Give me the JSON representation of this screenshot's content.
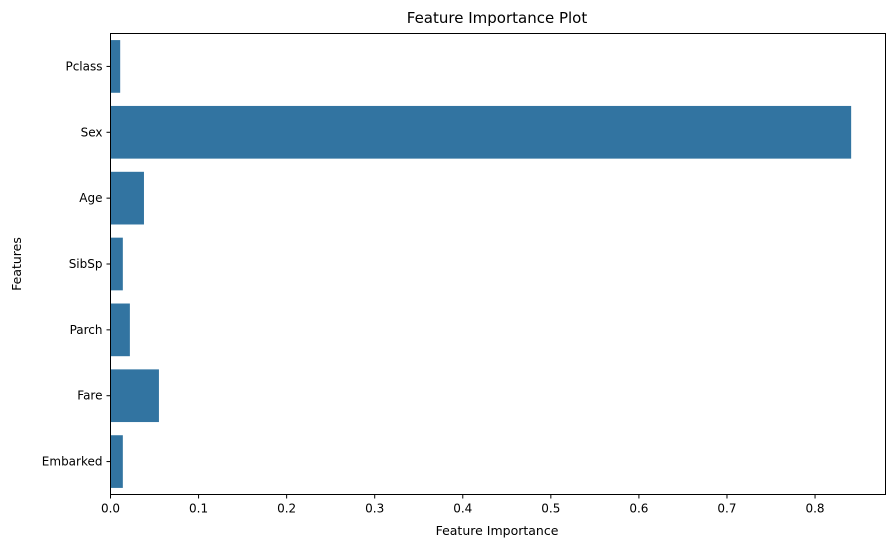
{
  "chart_data": {
    "type": "bar",
    "orientation": "horizontal",
    "title": "Feature Importance Plot",
    "xlabel": "Feature Importance",
    "ylabel": "Features",
    "categories": [
      "Pclass",
      "Sex",
      "Age",
      "SibSp",
      "Parch",
      "Fare",
      "Embarked"
    ],
    "values": [
      0.011,
      0.841,
      0.038,
      0.014,
      0.022,
      0.055,
      0.014
    ],
    "xlim": [
      0,
      0.88
    ],
    "xticks": [
      0.0,
      0.1,
      0.2,
      0.3,
      0.4,
      0.5,
      0.6,
      0.7,
      0.8
    ],
    "xtick_labels": [
      "0.0",
      "0.1",
      "0.2",
      "0.3",
      "0.4",
      "0.5",
      "0.6",
      "0.7",
      "0.8"
    ],
    "grid": false,
    "bar_color": "#3274a1"
  }
}
